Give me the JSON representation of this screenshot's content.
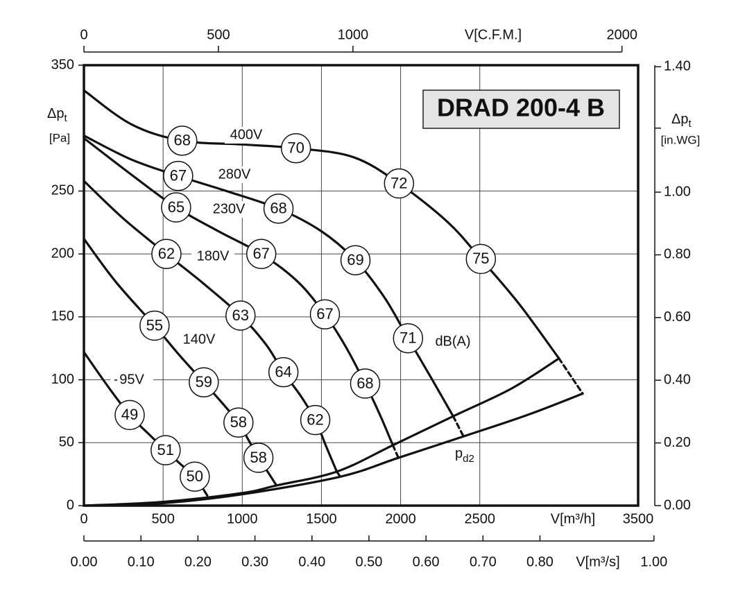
{
  "chart_data": {
    "type": "line",
    "title": "DRAD 200-4 B",
    "y_label": {
      "main": "Δp",
      "sub": "t",
      "unit": "[Pa]"
    },
    "y2_label": {
      "main": "Δp",
      "sub": "t",
      "unit": "[in.WG]"
    },
    "x_label": "V[m³/h]",
    "x2_label": "V[C.F.M.]",
    "x3_label": "V[m³/s]",
    "db_unit": "dB(A)",
    "grid": true,
    "xlim": [
      0,
      3500
    ],
    "xticks": [
      0,
      500,
      1000,
      1500,
      2000,
      2500,
      3500
    ],
    "ylim": [
      0,
      350
    ],
    "yticks": [
      0,
      50,
      100,
      150,
      200,
      250,
      350
    ],
    "y2lim": [
      0,
      1.405
    ],
    "y2ticks": [
      {
        "value": 0,
        "label": "0.00"
      },
      {
        "value": 0.2,
        "label": "0.20"
      },
      {
        "value": 0.4,
        "label": "0.40"
      },
      {
        "value": 0.6,
        "label": "0.60"
      },
      {
        "value": 0.8,
        "label": "0.80"
      },
      {
        "value": 1.0,
        "label": "1.00"
      },
      {
        "value": 1.4,
        "label": "1.40"
      }
    ],
    "x2lim": [
      0,
      2060
    ],
    "x2ticks": [
      0,
      500,
      1000,
      2000
    ],
    "x3lim": [
      0,
      0.9722
    ],
    "x3ticks": [
      {
        "value": 0,
        "label": "0.00"
      },
      {
        "value": 0.1,
        "label": "0.10"
      },
      {
        "value": 0.2,
        "label": "0.20"
      },
      {
        "value": 0.3,
        "label": "0.30"
      },
      {
        "value": 0.4,
        "label": "0.40"
      },
      {
        "value": 0.5,
        "label": "0.50"
      },
      {
        "value": 0.6,
        "label": "0.60"
      },
      {
        "value": 0.7,
        "label": "0.70"
      },
      {
        "value": 0.8,
        "label": "0.80"
      },
      {
        "value": 1.0,
        "label": "1.00"
      }
    ],
    "series": [
      {
        "name": "400V",
        "color": "#111111",
        "x": [
          0,
          300,
          621,
          1000,
          1339,
          1700,
          1990,
          2300,
          2507,
          2750,
          3000
        ],
        "values": [
          330,
          303,
          290,
          287,
          284,
          277,
          256,
          225,
          196,
          160,
          117
        ],
        "dash_x": [
          3000,
          3150
        ],
        "dash_values": [
          117,
          89
        ],
        "db": {
          "x": [
            621,
            1339,
            1990,
            2507
          ],
          "y": [
            290,
            284,
            256,
            196
          ],
          "values": [
            68,
            70,
            72,
            75
          ]
        }
      },
      {
        "name": "280V",
        "color": "#111111",
        "x": [
          0,
          300,
          595,
          900,
          1229,
          1500,
          1715,
          1900,
          2047,
          2200,
          2332
        ],
        "values": [
          294,
          275,
          262,
          250,
          236,
          218,
          195,
          165,
          133,
          100,
          71
        ],
        "dash_x": [
          2332,
          2397
        ],
        "dash_values": [
          71,
          55
        ],
        "db": {
          "x": [
            595,
            1229,
            1715,
            2047
          ],
          "y": [
            262,
            236,
            195,
            133
          ],
          "values": [
            67,
            68,
            69,
            71
          ]
        }
      },
      {
        "name": "230V",
        "color": "#111111",
        "x": [
          0,
          300,
          582,
          850,
          1120,
          1350,
          1522,
          1650,
          1776,
          1870,
          1951
        ],
        "values": [
          292,
          263,
          237,
          218,
          200,
          178,
          152,
          127,
          97,
          72,
          48
        ],
        "dash_x": [
          1951,
          1986
        ],
        "dash_values": [
          48,
          38
        ],
        "db": {
          "x": [
            582,
            1120,
            1522,
            1776
          ],
          "y": [
            237,
            200,
            152,
            97
          ],
          "values": [
            65,
            67,
            67,
            68
          ]
        }
      },
      {
        "name": "180V",
        "color": "#111111",
        "x": [
          0,
          250,
          521,
          750,
          989,
          1150,
          1260,
          1370,
          1461,
          1530,
          1597
        ],
        "values": [
          258,
          228,
          200,
          177,
          151,
          128,
          106,
          87,
          68,
          47,
          27
        ],
        "dash_x": [
          1597,
          1619
        ],
        "dash_values": [
          27,
          23
        ],
        "db": {
          "x": [
            521,
            989,
            1260,
            1461
          ],
          "y": [
            200,
            151,
            106,
            68
          ],
          "values": [
            62,
            63,
            64,
            62
          ]
        }
      },
      {
        "name": "140V",
        "color": "#111111",
        "x": [
          0,
          200,
          446,
          600,
          757,
          870,
          976,
          1040,
          1102,
          1160,
          1216
        ],
        "values": [
          212,
          178,
          143,
          120,
          98,
          82,
          66,
          52,
          38,
          27,
          16
        ],
        "db": {
          "x": [
            446,
            757,
            976,
            1102
          ],
          "y": [
            143,
            98,
            66,
            38
          ],
          "values": [
            55,
            59,
            58,
            58
          ]
        }
      },
      {
        "name": "95V",
        "color": "#111111",
        "x": [
          0,
          150,
          289,
          400,
          516,
          610,
          700,
          779
        ],
        "values": [
          122,
          95,
          72,
          58,
          44,
          33,
          23,
          8
        ],
        "db": {
          "x": [
            289,
            516,
            700
          ],
          "y": [
            72,
            44,
            23
          ],
          "values": [
            49,
            51,
            50
          ]
        }
      }
    ],
    "system_curves": [
      {
        "x": [
          0,
          500,
          1000,
          1216,
          1597,
          1951,
          2332,
          2700,
          3000
        ],
        "values": [
          0,
          3,
          10,
          16,
          27,
          48,
          71,
          93,
          117
        ]
      },
      {
        "name": "p",
        "name_sub": "d2",
        "x": [
          0,
          500,
          1000,
          1619,
          1986,
          2397,
          2800,
          3150
        ],
        "values": [
          0,
          2,
          9,
          23,
          38,
          55,
          72,
          89
        ]
      }
    ]
  }
}
